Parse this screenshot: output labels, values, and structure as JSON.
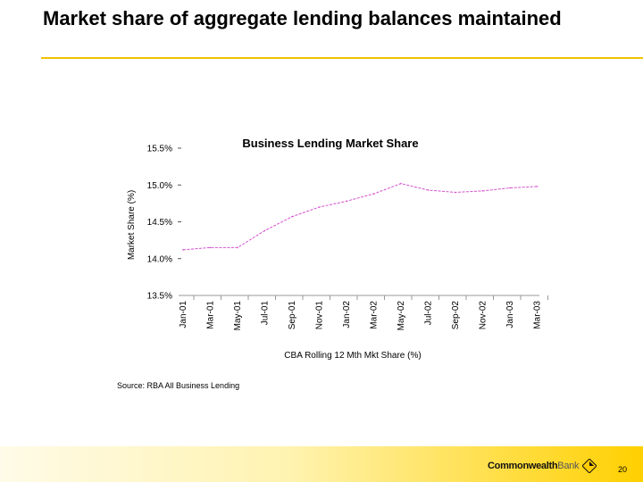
{
  "slide": {
    "title": "Market share of aggregate lending balances maintained",
    "source": "Source: RBA All Business Lending",
    "page_number": "20",
    "brand": {
      "bold": "Commonwealth",
      "light": "Bank"
    },
    "colors": {
      "accent": "#f2c200",
      "series": "#d64fd0",
      "footer_end": "#ffd000"
    }
  },
  "chart_data": {
    "type": "line",
    "title": "Business Lending Market Share",
    "ylabel": "Market Share (%)",
    "xlabel": "",
    "legend": "CBA Rolling 12 Mth Mkt Share (%)",
    "legend_position": "bottom",
    "grid": false,
    "ylim": [
      13.5,
      15.5
    ],
    "yticks": [
      "13.5%",
      "14.0%",
      "14.5%",
      "15.0%",
      "15.5%"
    ],
    "categories": [
      "Jan-01",
      "Mar-01",
      "May-01",
      "Jul-01",
      "Sep-01",
      "Nov-01",
      "Jan-02",
      "Mar-02",
      "May-02",
      "Jul-02",
      "Sep-02",
      "Nov-02",
      "Jan-03",
      "Mar-03"
    ],
    "series": [
      {
        "name": "CBA Rolling 12 Mth Mkt Share (%)",
        "color": "#d64fd0",
        "values": [
          14.12,
          14.15,
          14.15,
          14.38,
          14.57,
          14.7,
          14.78,
          14.88,
          15.02,
          14.93,
          14.9,
          14.92,
          14.96,
          14.98
        ]
      }
    ]
  }
}
